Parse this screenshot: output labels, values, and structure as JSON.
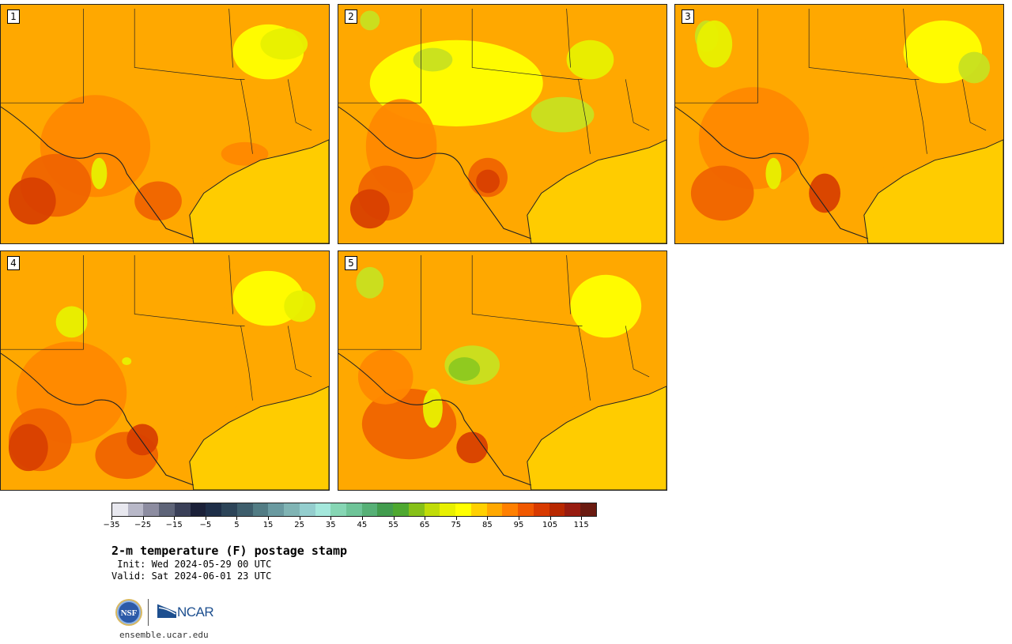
{
  "panels": [
    {
      "label": "1"
    },
    {
      "label": "2"
    },
    {
      "label": "3"
    },
    {
      "label": "4"
    },
    {
      "label": "5"
    }
  ],
  "colorbar": {
    "colors": [
      "#e8e8ef",
      "#b8b8c8",
      "#8c8ca0",
      "#5e6478",
      "#3a4058",
      "#1a2038",
      "#1e2e48",
      "#2c4458",
      "#3e5e6c",
      "#527c84",
      "#6a9aa0",
      "#80b4b4",
      "#94cece",
      "#a4e8dc",
      "#86d6b4",
      "#6ec498",
      "#56b076",
      "#429c4e",
      "#4ea830",
      "#86c018",
      "#c0dc08",
      "#e8f000",
      "#ffff00",
      "#ffd000",
      "#ffa800",
      "#ff8000",
      "#f05800",
      "#d83a00",
      "#b82800",
      "#981c10",
      "#6a1a10"
    ],
    "tick_labels": [
      "−35",
      "−25",
      "−15",
      "−5",
      "5",
      "15",
      "25",
      "35",
      "45",
      "55",
      "65",
      "75",
      "85",
      "95",
      "105",
      "115"
    ]
  },
  "title": "2-m temperature (F) postage stamp",
  "init_line": " Init: Wed 2024-05-29 00 UTC",
  "valid_line": "Valid: Sat 2024-06-01 23 UTC",
  "logos": {
    "nsf": "NSF",
    "ncar": "NCAR"
  },
  "url": "ensemble.ucar.edu",
  "icons": {
    "nsf_logo": "nsf-logo",
    "ncar_logo": "ncar-logo"
  }
}
